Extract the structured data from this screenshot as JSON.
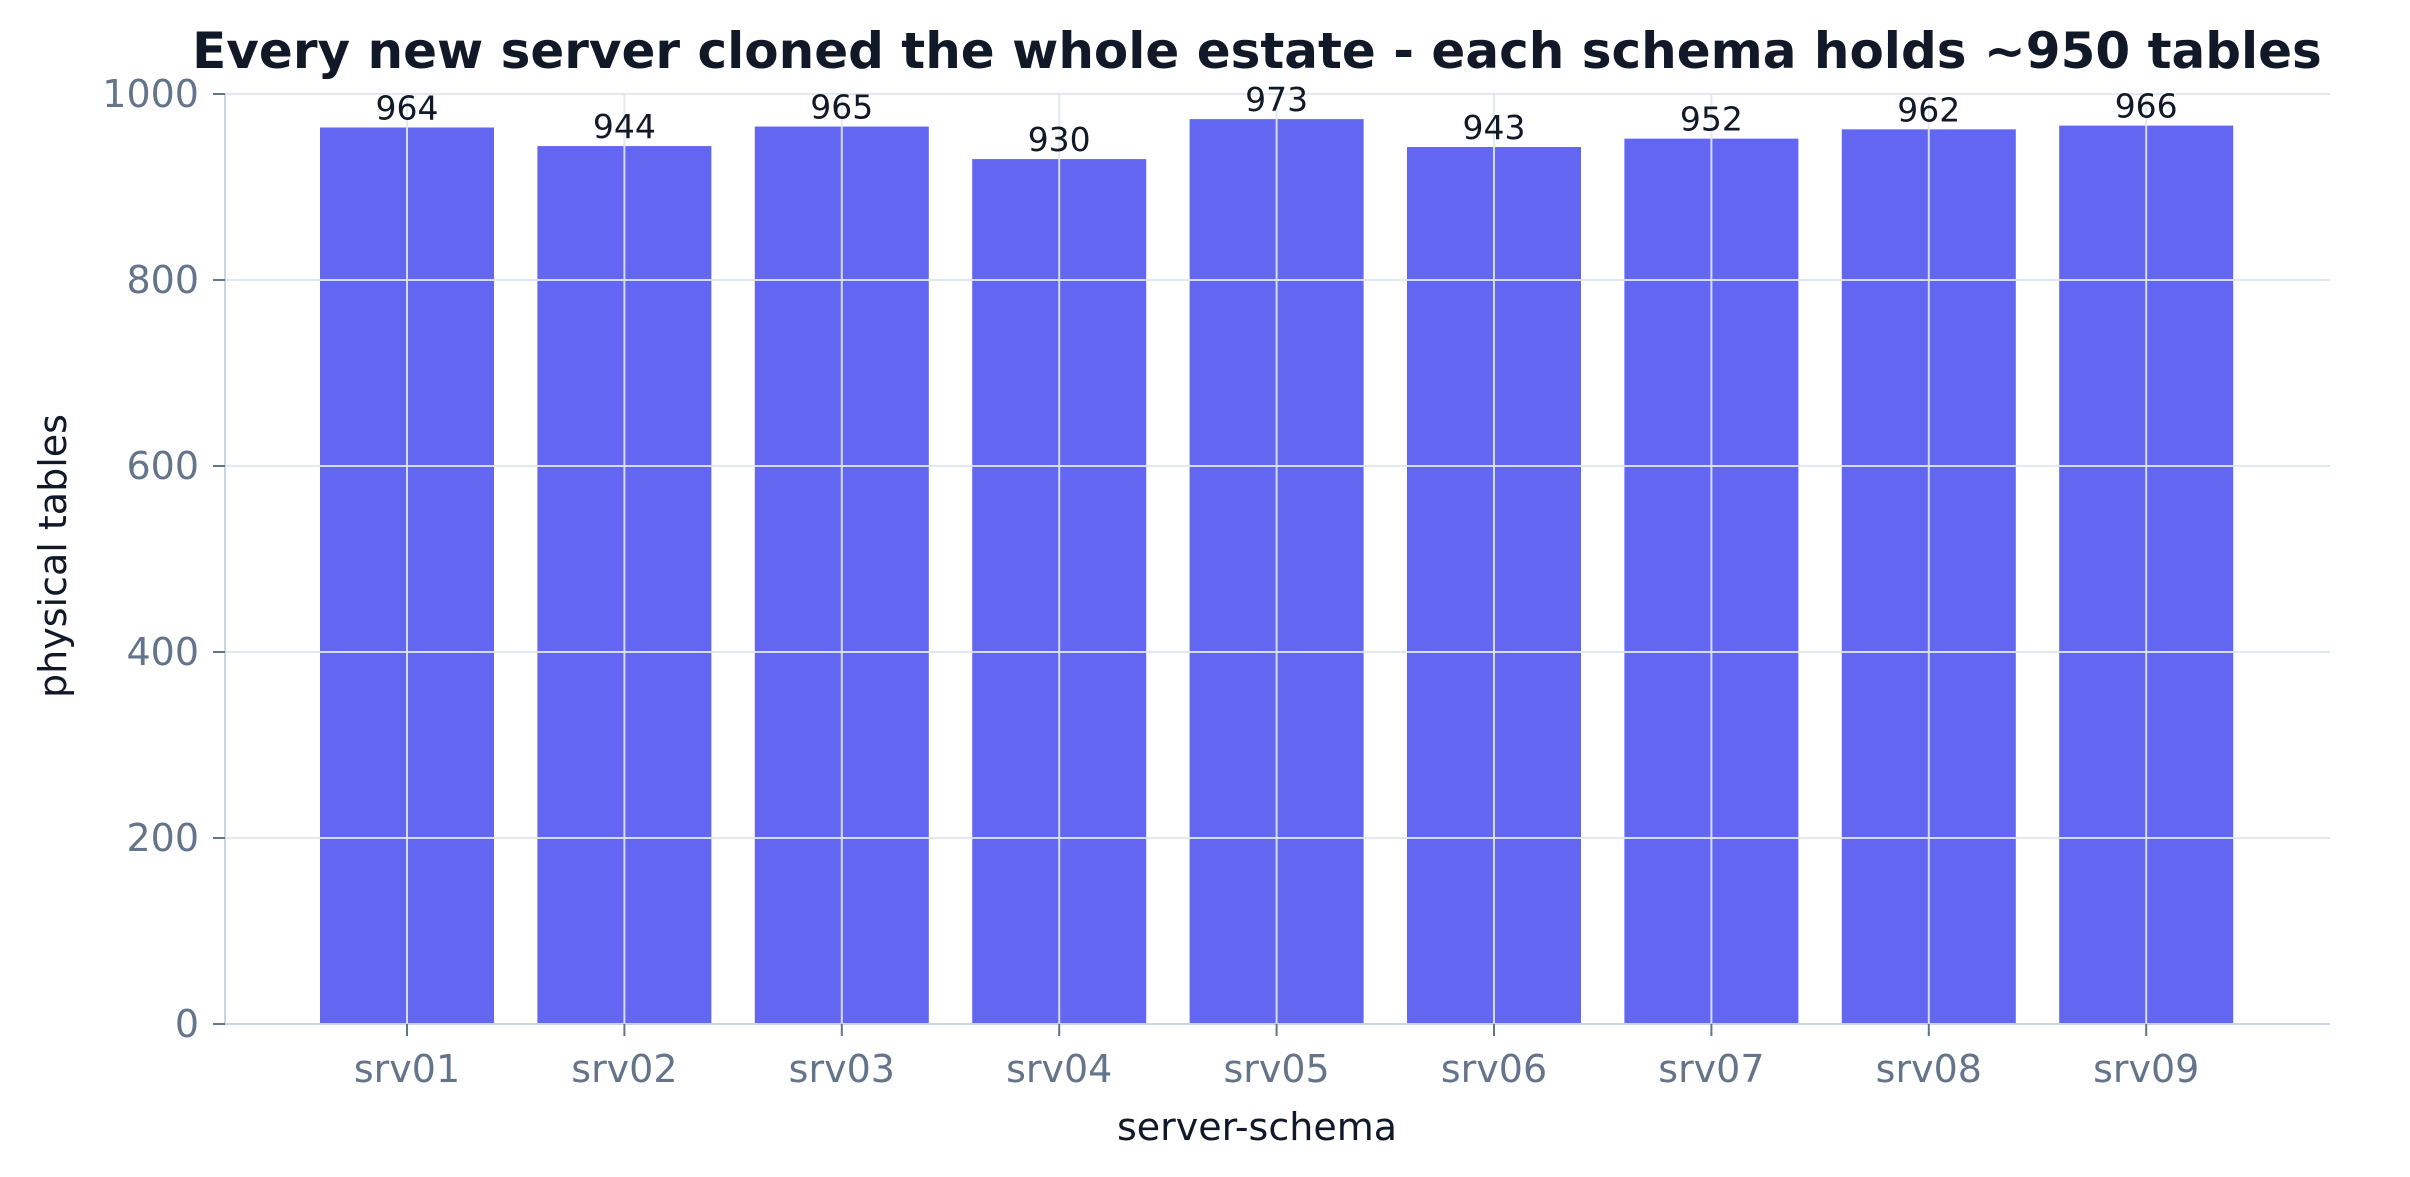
{
  "chart_data": {
    "type": "bar",
    "title": "Every new server cloned the whole estate - each schema holds ~950 tables",
    "xlabel": "server-schema",
    "ylabel": "physical tables",
    "categories": [
      "srv01",
      "srv02",
      "srv03",
      "srv04",
      "srv05",
      "srv06",
      "srv07",
      "srv08",
      "srv09"
    ],
    "values": [
      964,
      944,
      965,
      930,
      973,
      943,
      952,
      962,
      966
    ],
    "data_labels": [
      "964",
      "944",
      "965",
      "930",
      "973",
      "943",
      "952",
      "962",
      "966"
    ],
    "ylim": [
      0,
      1000
    ],
    "yticks": [
      0,
      200,
      400,
      600,
      800,
      1000
    ],
    "ytick_labels": [
      "0",
      "200",
      "400",
      "600",
      "800",
      "1000"
    ],
    "grid": true,
    "legend": "none",
    "colors": {
      "bar": "#6366f1",
      "grid": "#e2e8f0",
      "axis": "#cbd5e1",
      "tick_text": "#64748b",
      "text": "#111827"
    }
  }
}
